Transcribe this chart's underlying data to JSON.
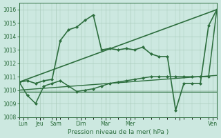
{
  "background_color": "#cce8e0",
  "grid_color": "#aaccbb",
  "line_color": "#2d6e3e",
  "ylim": [
    1008,
    1016.5
  ],
  "yticks": [
    1008,
    1009,
    1010,
    1011,
    1012,
    1013,
    1014,
    1015,
    1016
  ],
  "xlabel": "Pression niveau de la mer( hPa )",
  "xlim": [
    0,
    24
  ],
  "day_positions": [
    0.5,
    2.5,
    4.5,
    7.5,
    10.5,
    13.5,
    19.5,
    23.5
  ],
  "day_labels": [
    "Lun",
    "Jeu",
    "Sam",
    "Dim",
    "Mar",
    "Mer",
    "",
    "Ven"
  ],
  "series": [
    {
      "x": [
        0,
        24
      ],
      "y": [
        1010.6,
        1016.0
      ],
      "marker": null,
      "markersize": 0,
      "linewidth": 1.2,
      "linestyle": "-"
    },
    {
      "x": [
        0,
        24
      ],
      "y": [
        1009.9,
        1009.9
      ],
      "marker": null,
      "markersize": 0,
      "linewidth": 1.0,
      "linestyle": "-"
    },
    {
      "x": [
        0,
        24
      ],
      "y": [
        1010.0,
        1011.1
      ],
      "marker": null,
      "markersize": 0,
      "linewidth": 1.0,
      "linestyle": "-"
    },
    {
      "x": [
        0,
        1,
        2,
        3,
        4,
        5,
        6,
        7,
        8,
        9,
        10,
        11,
        12,
        13,
        14,
        15,
        16,
        17,
        18,
        19,
        20,
        21,
        22,
        23,
        24
      ],
      "y": [
        1010.6,
        1009.6,
        1009.0,
        1010.3,
        1010.5,
        1010.7,
        1010.3,
        1009.9,
        1010.0,
        1010.1,
        1010.3,
        1010.5,
        1010.6,
        1010.7,
        1010.8,
        1010.9,
        1011.0,
        1011.0,
        1011.0,
        1011.0,
        1011.0,
        1011.0,
        1011.0,
        1011.0,
        1016.0
      ],
      "marker": "D",
      "markersize": 2.0,
      "linewidth": 1.1,
      "linestyle": "-"
    },
    {
      "x": [
        0,
        1,
        2,
        3,
        4,
        5,
        6,
        7,
        8,
        9,
        10,
        11,
        12,
        13,
        14,
        15,
        16,
        17,
        18,
        19,
        20,
        21,
        22,
        23,
        24
      ],
      "y": [
        1010.6,
        1010.7,
        1010.5,
        1010.7,
        1010.8,
        1013.7,
        1014.5,
        1014.7,
        1015.2,
        1015.6,
        1013.0,
        1013.1,
        1013.0,
        1013.1,
        1013.0,
        1013.2,
        1012.7,
        1012.5,
        1012.5,
        1008.5,
        1010.5,
        1010.5,
        1010.5,
        1014.8,
        1016.0
      ],
      "marker": "D",
      "markersize": 2.0,
      "linewidth": 1.2,
      "linestyle": "-"
    }
  ]
}
